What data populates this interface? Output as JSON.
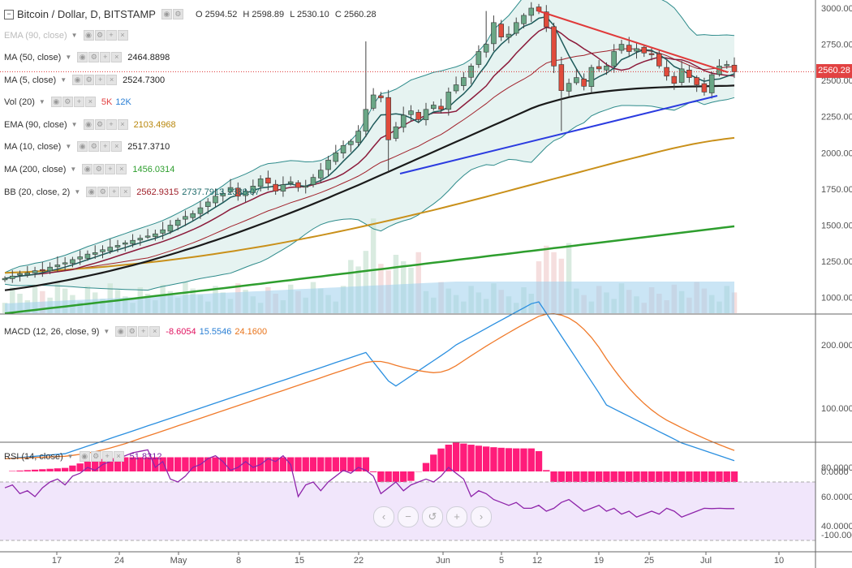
{
  "header": {
    "title": "Bitcoin / Dollar, D, BITSTAMP",
    "ohlc": {
      "o": "O 2594.52",
      "h": "H 2598.89",
      "l": "L 2530.10",
      "c": "C 2560.28"
    }
  },
  "last_price": "2560.28",
  "indicators": [
    {
      "name": "EMA (90, close)",
      "values": [],
      "faded": true
    },
    {
      "name": "MA (50, close)",
      "values": [
        {
          "text": "2464.8898",
          "color": "#222222"
        }
      ]
    },
    {
      "name": "MA (5, close)",
      "values": [
        {
          "text": "2524.7300",
          "color": "#222222"
        }
      ]
    },
    {
      "name": "Vol (20)",
      "values": [
        {
          "text": "5K",
          "color": "#e24242"
        },
        {
          "text": "12K",
          "color": "#2a7fd4"
        }
      ]
    },
    {
      "name": "EMA (90, close)",
      "values": [
        {
          "text": "2103.4968",
          "color": "#b8860b"
        }
      ]
    },
    {
      "name": "MA (10, close)",
      "values": [
        {
          "text": "2517.3710",
          "color": "#222222"
        }
      ]
    },
    {
      "name": "MA (200, close)",
      "values": [
        {
          "text": "1456.0314",
          "color": "#2e9e2e"
        }
      ]
    },
    {
      "name": "BB (20, close, 2)",
      "values": [
        {
          "text": "2562.9315",
          "color": "#a0202a"
        },
        {
          "text": "2737.7913",
          "color": "#1d6a6a"
        },
        {
          "text": "2388.07",
          "color": "#1d6a6a"
        }
      ]
    }
  ],
  "macd": {
    "name": "MACD (12, 26, close, 9)",
    "values": [
      {
        "text": "-8.6054",
        "color": "#e0115f"
      },
      {
        "text": "15.5546",
        "color": "#2a7fd4"
      },
      {
        "text": "24.1600",
        "color": "#e8731a"
      }
    ]
  },
  "rsi": {
    "name": "RSI (14, close)",
    "values": [
      {
        "text": "51.8312",
        "color": "#7b1fa2"
      }
    ]
  },
  "zoom_controls": [
    "‹",
    "−",
    "↺",
    "+",
    "›"
  ],
  "colors": {
    "up": "#6aa786",
    "down": "#e04c3c",
    "bb_fill": "#e6f3f1",
    "macd_hist": "#ff1c7a",
    "rsi_band": "#f1e6fb"
  },
  "chart_data": [
    {
      "type": "candlestick",
      "title": "Bitcoin / Dollar, D, BITSTAMP",
      "y_ticks": [
        "3000.00",
        "2750.00",
        "2500.00",
        "2250.00",
        "2000.00",
        "1750.00",
        "1500.00",
        "1250.00",
        "1000.00"
      ],
      "ylim": [
        825,
        3050
      ],
      "x_ticks": [
        "17",
        "24",
        "May",
        "8",
        "15",
        "22",
        "Jun",
        "5",
        "12",
        "19",
        "25",
        "Jul",
        "10"
      ],
      "close": [
        1132,
        1148,
        1165,
        1170,
        1185,
        1190,
        1210,
        1225,
        1240,
        1262,
        1281,
        1300,
        1310,
        1330,
        1348,
        1360,
        1378,
        1395,
        1410,
        1425,
        1440,
        1468,
        1500,
        1535,
        1560,
        1580,
        1620,
        1660,
        1700,
        1720,
        1760,
        1700,
        1735,
        1770,
        1820,
        1790,
        1735,
        1780,
        1800,
        1760,
        1770,
        1830,
        1880,
        1950,
        2000,
        2050,
        2080,
        2150,
        2300,
        2400,
        2380,
        2090,
        2180,
        2260,
        2290,
        2230,
        2300,
        2330,
        2300,
        2420,
        2470,
        2520,
        2600,
        2700,
        2750,
        2900,
        2800,
        2820,
        2900,
        2950,
        3000,
        2980,
        2870,
        2600,
        2430,
        2480,
        2520,
        2460,
        2590,
        2580,
        2600,
        2700,
        2750,
        2700,
        2720,
        2690,
        2680,
        2600,
        2530,
        2480,
        2580,
        2520,
        2470,
        2420,
        2540,
        2600,
        2610,
        2560
      ],
      "ma50": [
        1050,
        1057,
        1064,
        1072,
        1080,
        1089,
        1098,
        1107,
        1117,
        1127,
        1138,
        1149,
        1160,
        1172,
        1184,
        1197,
        1210,
        1223,
        1237,
        1251,
        1266,
        1281,
        1296,
        1312,
        1328,
        1344,
        1361,
        1378,
        1395,
        1413,
        1431,
        1449,
        1468,
        1487,
        1506,
        1525,
        1545,
        1565,
        1585,
        1605,
        1626,
        1647,
        1668,
        1689,
        1711,
        1733,
        1755,
        1777,
        1800,
        1823,
        1846,
        1869,
        1892,
        1915,
        1938,
        1961,
        1984,
        2007,
        2030,
        2053,
        2076,
        2099,
        2122,
        2145,
        2168,
        2191,
        2214,
        2237,
        2260,
        2283,
        2306,
        2326,
        2342,
        2357,
        2371,
        2384,
        2395,
        2404,
        2412,
        2419,
        2425,
        2431,
        2436,
        2440,
        2444,
        2447,
        2450,
        2452,
        2454,
        2456,
        2457,
        2458,
        2459,
        2460,
        2461,
        2462,
        2463,
        2465
      ],
      "ema90": [
        1170,
        1173,
        1176,
        1180,
        1184,
        1188,
        1193,
        1198,
        1203,
        1209,
        1215,
        1222,
        1229,
        1236,
        1244,
        1252,
        1261,
        1270,
        1279,
        1289,
        1299,
        1310,
        1321,
        1333,
        1345,
        1357,
        1370,
        1383,
        1397,
        1411,
        1425,
        1440,
        1455,
        1470,
        1486,
        1502,
        1518,
        1534,
        1551,
        1568,
        1585,
        1602,
        1620,
        1638,
        1656,
        1674,
        1693,
        1712,
        1731,
        1750,
        1769,
        1788,
        1807,
        1826,
        1845,
        1864,
        1883,
        1902,
        1921,
        1940,
        1958,
        1976,
        1994,
        2012,
        2029,
        2045,
        2060,
        2073,
        2085,
        2095,
        2103
      ]
    },
    {
      "type": "line",
      "name": "MACD (12, 26, close, 9)",
      "y_ticks": [
        "200.0000",
        "100.0000",
        "0.0000",
        "-100.0000"
      ],
      "ylim": [
        -105,
        280
      ]
    },
    {
      "type": "line",
      "name": "RSI (14, close)",
      "y_ticks": [
        "80.0000",
        "60.0000",
        "40.0000"
      ],
      "ylim": [
        27,
        95
      ],
      "band": [
        30,
        70
      ]
    }
  ]
}
